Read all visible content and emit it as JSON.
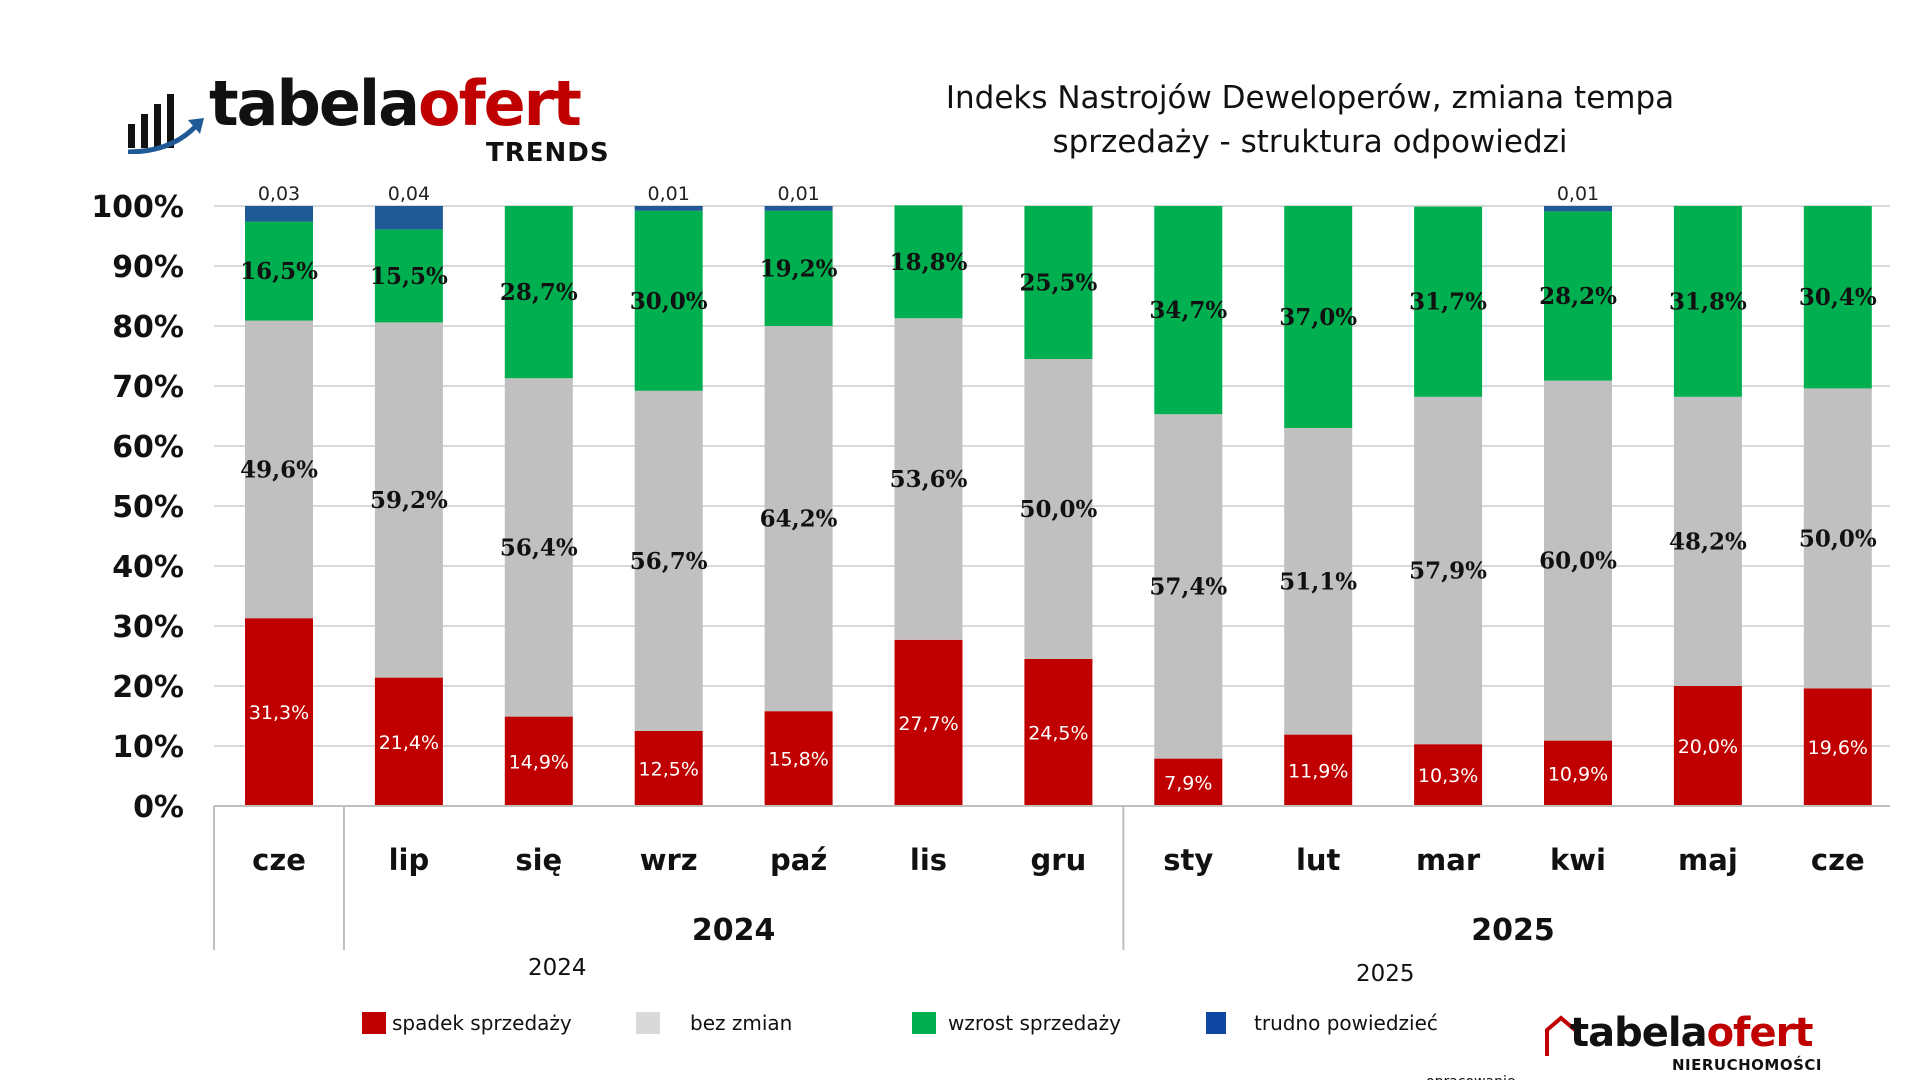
{
  "brand": {
    "name_part1": "tabela",
    "name_part2": "ofert",
    "tagline": "TRENDS"
  },
  "title_line1": "Indeks Nastrojów Deweloperów, zmiana tempa",
  "title_line2": "sprzedaży - struktura odpowiedzi",
  "colors": {
    "spadek": "#c00000",
    "bez_zmian": "#c0c0c0",
    "wzrost": "#00b050",
    "trudno": "#1f5a96",
    "grid": "#d9d9d9",
    "axis": "#bfbfbf"
  },
  "chart_data": {
    "type": "bar",
    "stacked": true,
    "categories": [
      "cze",
      "lip",
      "się",
      "wrz",
      "paź",
      "lis",
      "gru",
      "sty",
      "lut",
      "mar",
      "kwi",
      "maj",
      "cze"
    ],
    "year_groups": [
      {
        "label": "2024",
        "start_index": 1,
        "end_index": 6
      },
      {
        "label": "2025",
        "start_index": 7,
        "end_index": 12
      }
    ],
    "y_ticks": [
      "0%",
      "10%",
      "20%",
      "30%",
      "40%",
      "50%",
      "60%",
      "70%",
      "80%",
      "90%",
      "100%"
    ],
    "ylim": [
      0,
      100
    ],
    "grid": true,
    "legend_position": "bottom",
    "series": [
      {
        "name": "spadek sprzedaży",
        "key": "spadek",
        "values": [
          31.3,
          21.4,
          14.9,
          12.5,
          15.8,
          27.7,
          24.5,
          7.9,
          11.9,
          10.3,
          10.9,
          20.0,
          19.6
        ],
        "labels": [
          "31,3%",
          "21,4%",
          "14,9%",
          "12,5%",
          "15,8%",
          "27,7%",
          "24,5%",
          "7,9%",
          "11,9%",
          "10,3%",
          "10,9%",
          "20,0%",
          "19,6%"
        ]
      },
      {
        "name": "bez zmian",
        "key": "bez_zmian",
        "values": [
          49.6,
          59.2,
          56.4,
          56.7,
          64.2,
          53.6,
          50.0,
          57.4,
          51.1,
          57.9,
          60.0,
          48.2,
          50.0
        ],
        "labels": [
          "49,6%",
          "59,2%",
          "56,4%",
          "56,7%",
          "64,2%",
          "53,6%",
          "50,0%",
          "57,4%",
          "51,1%",
          "57,9%",
          "60,0%",
          "48,2%",
          "50,0%"
        ]
      },
      {
        "name": "wzrost sprzedaży",
        "key": "wzrost",
        "values": [
          16.5,
          15.5,
          28.7,
          30.0,
          19.2,
          18.8,
          25.5,
          34.7,
          37.0,
          31.7,
          28.2,
          31.8,
          30.4
        ],
        "labels": [
          "16,5%",
          "15,5%",
          "28,7%",
          "30,0%",
          "19,2%",
          "18,8%",
          "25,5%",
          "34,7%",
          "37,0%",
          "31,7%",
          "28,2%",
          "31,8%",
          "30,4%"
        ]
      },
      {
        "name": "trudno powiedzieć",
        "key": "trudno",
        "values": [
          2.6,
          3.9,
          0,
          0.8,
          0.8,
          0,
          0,
          0,
          0,
          0,
          0.9,
          0,
          0
        ],
        "labels": [
          "0,03",
          "0,04",
          "",
          "0,01",
          "0,01",
          "",
          "",
          "",
          "",
          "",
          "0,01",
          "",
          ""
        ]
      }
    ]
  },
  "year_notes": [
    "2024",
    "2025"
  ],
  "legend": [
    {
      "label": "spadek sprzedaży",
      "key": "spadek"
    },
    {
      "label": "bez zmian",
      "key": "bez_zmian"
    },
    {
      "label": "wzrost sprzedaży",
      "key": "wzrost"
    },
    {
      "label": "trudno powiedzieć",
      "key": "trudno"
    }
  ],
  "credit": {
    "prefix": "opracowanie",
    "name_part1": "tabela",
    "name_part2": "ofert",
    "sub": "NIERUCHOMOŚCI"
  }
}
